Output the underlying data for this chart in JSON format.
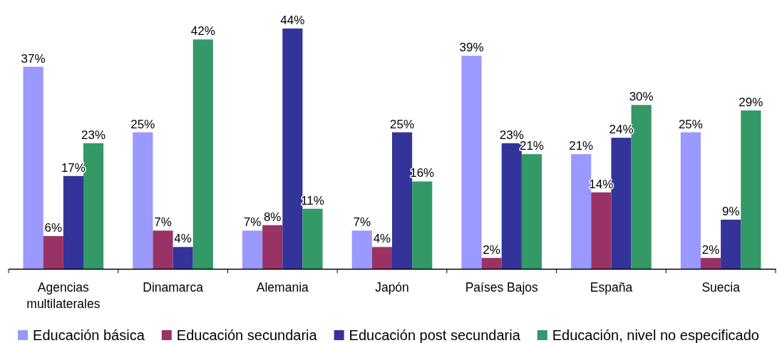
{
  "chart_data": {
    "type": "bar",
    "categories": [
      "Agencias multilaterales",
      "Dinamarca",
      "Alemania",
      "Japón",
      "Países Bajos",
      "España",
      "Suecia"
    ],
    "series": [
      {
        "name": "Educación básica",
        "color": "#9999ff",
        "values": [
          37,
          25,
          7,
          7,
          39,
          21,
          25
        ],
        "value_labels": [
          "37%",
          "25%",
          "7%",
          "7%",
          "39%",
          "21%",
          "25%"
        ]
      },
      {
        "name": "Educación secundaria",
        "color": "#993366",
        "values": [
          6,
          7,
          8,
          4,
          2,
          14,
          2
        ],
        "value_labels": [
          "6%",
          "7%",
          "8%",
          "4%",
          "2%",
          "14%",
          "2%"
        ]
      },
      {
        "name": "Educación post secundaria",
        "color": "#333399",
        "values": [
          17,
          4,
          44,
          25,
          23,
          24,
          9
        ],
        "value_labels": [
          "17%",
          "4%",
          "44%",
          "25%",
          "23%",
          "24%",
          "9%"
        ]
      },
      {
        "name": "Educación, nivel no especificado",
        "color": "#339966",
        "values": [
          23,
          42,
          11,
          16,
          21,
          30,
          29
        ],
        "value_labels": [
          "23%",
          "42%",
          "11%",
          "16%",
          "21%",
          "30%",
          "29%"
        ]
      }
    ],
    "tick_labels": "x",
    "legend": "bottom"
  }
}
